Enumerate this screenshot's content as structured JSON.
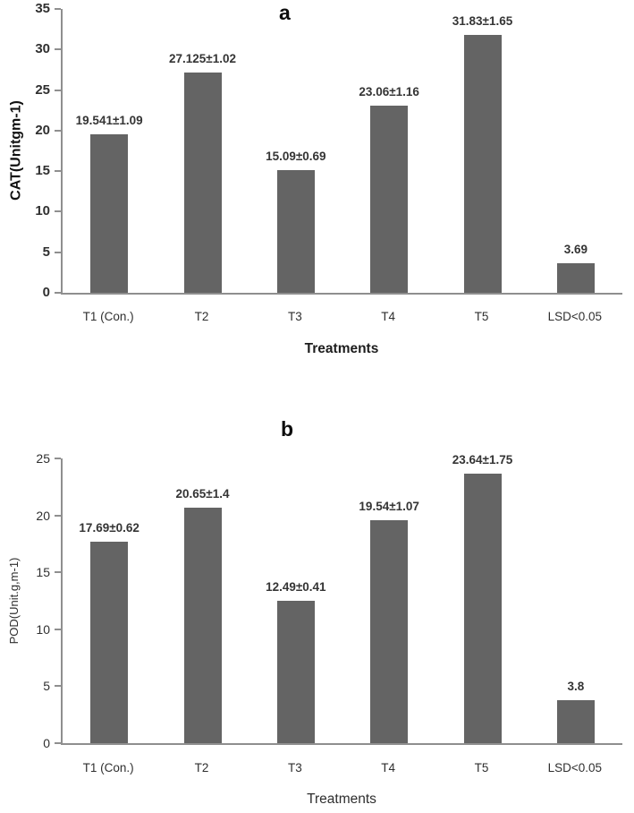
{
  "page": {
    "background": "#ffffff"
  },
  "chart_data": [
    {
      "type": "bar",
      "panel_letter": "a",
      "categories": [
        "T1 (Con.)",
        "T2",
        "T3",
        "T4",
        "T5",
        "LSD<0.05"
      ],
      "values": [
        19.541,
        27.125,
        15.09,
        23.06,
        31.83,
        3.69
      ],
      "bar_labels": [
        "19.541±1.09",
        "27.125±1.02",
        "15.09±0.69",
        "23.06±1.16",
        "31.83±1.65",
        "3.69"
      ],
      "xlabel": "Treatments",
      "ylabel": "CAT(Unitgm-1)",
      "ylim": [
        0,
        35
      ],
      "yticks": [
        0,
        5,
        10,
        15,
        20,
        25,
        30,
        35
      ],
      "bar_color": "#646464",
      "axis_color": "#8f8f8f",
      "grid": false,
      "legend": "none"
    },
    {
      "type": "bar",
      "panel_letter": "b",
      "categories": [
        "T1 (Con.)",
        "T2",
        "T3",
        "T4",
        "T5",
        "LSD<0.05"
      ],
      "values": [
        17.69,
        20.65,
        12.49,
        19.54,
        23.64,
        3.8
      ],
      "bar_labels": [
        "17.69±0.62",
        "20.65±1.4",
        "12.49±0.41",
        "19.54±1.07",
        "23.64±1.75",
        "3.8"
      ],
      "xlabel": "Treatments",
      "ylabel": "POD(Unit.g,m-1)",
      "ylim": [
        0,
        25
      ],
      "yticks": [
        0,
        5,
        10,
        15,
        20,
        25
      ],
      "bar_color": "#646464",
      "axis_color": "#8f8f8f",
      "grid": false,
      "legend": "none"
    }
  ]
}
